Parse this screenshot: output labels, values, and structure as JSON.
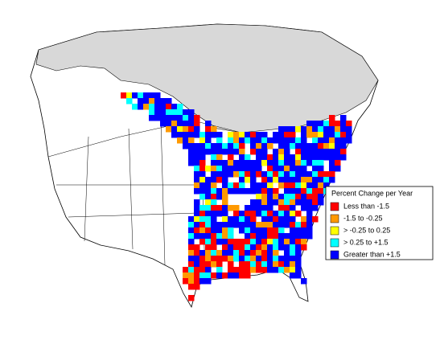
{
  "legend": {
    "title": "Percent Change per Year",
    "items": [
      {
        "label": "Less than -1.5",
        "color": "#ff0000"
      },
      {
        "label": "-1.5 to -0.25",
        "color": "#ff9900"
      },
      {
        "label": "> -0.25 to 0.25",
        "color": "#ffff00"
      },
      {
        "label": "> 0.25 to +1.5",
        "color": "#00ffff"
      },
      {
        "label": "Greater than +1.5",
        "color": "#0000ff"
      }
    ]
  }
}
